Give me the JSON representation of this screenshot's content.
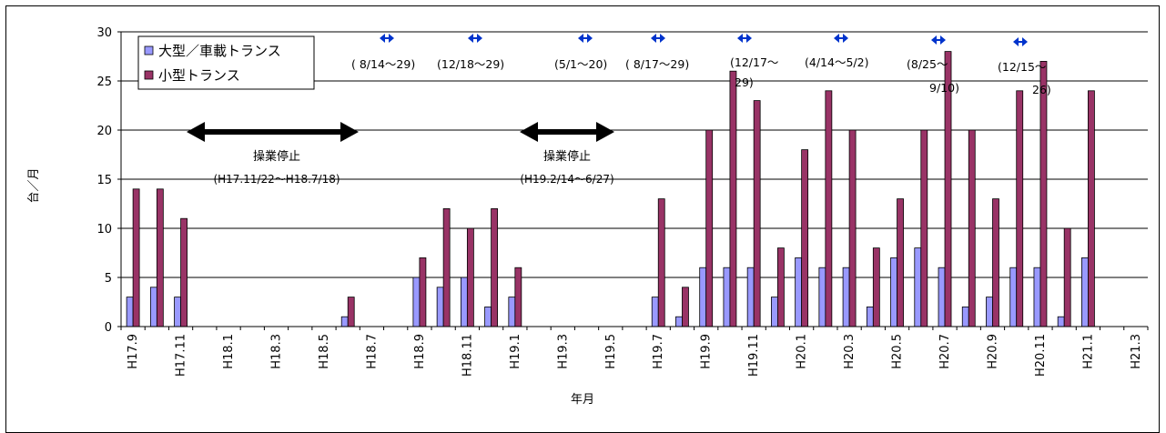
{
  "chart_data": {
    "type": "bar",
    "title": "",
    "xlabel": "年月",
    "ylabel": "台／月",
    "ylim": [
      0,
      30
    ],
    "yticks": [
      0,
      5,
      10,
      15,
      20,
      25,
      30
    ],
    "grid": true,
    "legend_position": "top-left",
    "categories": [
      "H17.9",
      "H17.10",
      "H17.11",
      "H17.12",
      "H18.1",
      "H18.2",
      "H18.3",
      "H18.4",
      "H18.5",
      "H18.6",
      "H18.7",
      "H18.8",
      "H18.9",
      "H18.10",
      "H18.11",
      "H18.12",
      "H19.1",
      "H19.2",
      "H19.3",
      "H19.4",
      "H19.5",
      "H19.6",
      "H19.7",
      "H19.8",
      "H19.9",
      "H19.10",
      "H19.11",
      "H19.12",
      "H20.1",
      "H20.2",
      "H20.3",
      "H20.4",
      "H20.5",
      "H20.6",
      "H20.7",
      "H20.8",
      "H20.9",
      "H20.10",
      "H20.11",
      "H20.12",
      "H21.1",
      "H21.2",
      "H21.3"
    ],
    "tick_labels": [
      "H17.9",
      "H17.11",
      "H18.1",
      "H18.3",
      "H18.5",
      "H18.7",
      "H18.9",
      "H18.11",
      "H19.1",
      "H19.3",
      "H19.5",
      "H19.7",
      "H19.9",
      "H19.11",
      "H20.1",
      "H20.3",
      "H20.5",
      "H20.7",
      "H20.9",
      "H20.11",
      "H21.1",
      "H21.3"
    ],
    "series": [
      {
        "name": "大型／車載トランス",
        "color": "#9999ff",
        "values": [
          3,
          4,
          3,
          0,
          0,
          0,
          0,
          0,
          0,
          1,
          0,
          0,
          5,
          4,
          5,
          2,
          3,
          0,
          0,
          0,
          0,
          0,
          3,
          1,
          6,
          6,
          6,
          3,
          7,
          6,
          6,
          2,
          7,
          8,
          6,
          2,
          3,
          6,
          6,
          1,
          7,
          0,
          0
        ]
      },
      {
        "name": "小型トランス",
        "color": "#993366",
        "values": [
          14,
          14,
          11,
          0,
          0,
          0,
          0,
          0,
          0,
          3,
          0,
          0,
          7,
          12,
          10,
          12,
          6,
          0,
          0,
          0,
          0,
          0,
          13,
          4,
          20,
          26,
          23,
          8,
          18,
          24,
          20,
          8,
          13,
          20,
          28,
          20,
          13,
          24,
          27,
          10,
          24,
          0,
          0
        ]
      }
    ],
    "annotations": {
      "shutdowns": [
        {
          "label": "操業停止",
          "period": "(H17.11/22～H18.7/18)"
        },
        {
          "label": "操業停止",
          "period": "(H19.2/14～6/27)"
        }
      ],
      "periods": [
        {
          "lines": [
            "( 8/14～29)"
          ]
        },
        {
          "lines": [
            "(12/18～29)"
          ]
        },
        {
          "lines": [
            "(5/1～20)"
          ]
        },
        {
          "lines": [
            "( 8/17～29)"
          ]
        },
        {
          "lines": [
            "(12/17～",
            "29)"
          ]
        },
        {
          "lines": [
            "(4/14～5/2)"
          ]
        },
        {
          "lines": [
            "(8/25～",
            "9/10)"
          ]
        },
        {
          "lines": [
            "(12/15～",
            "26)"
          ]
        }
      ],
      "diamond_color": "#0033cc"
    }
  }
}
